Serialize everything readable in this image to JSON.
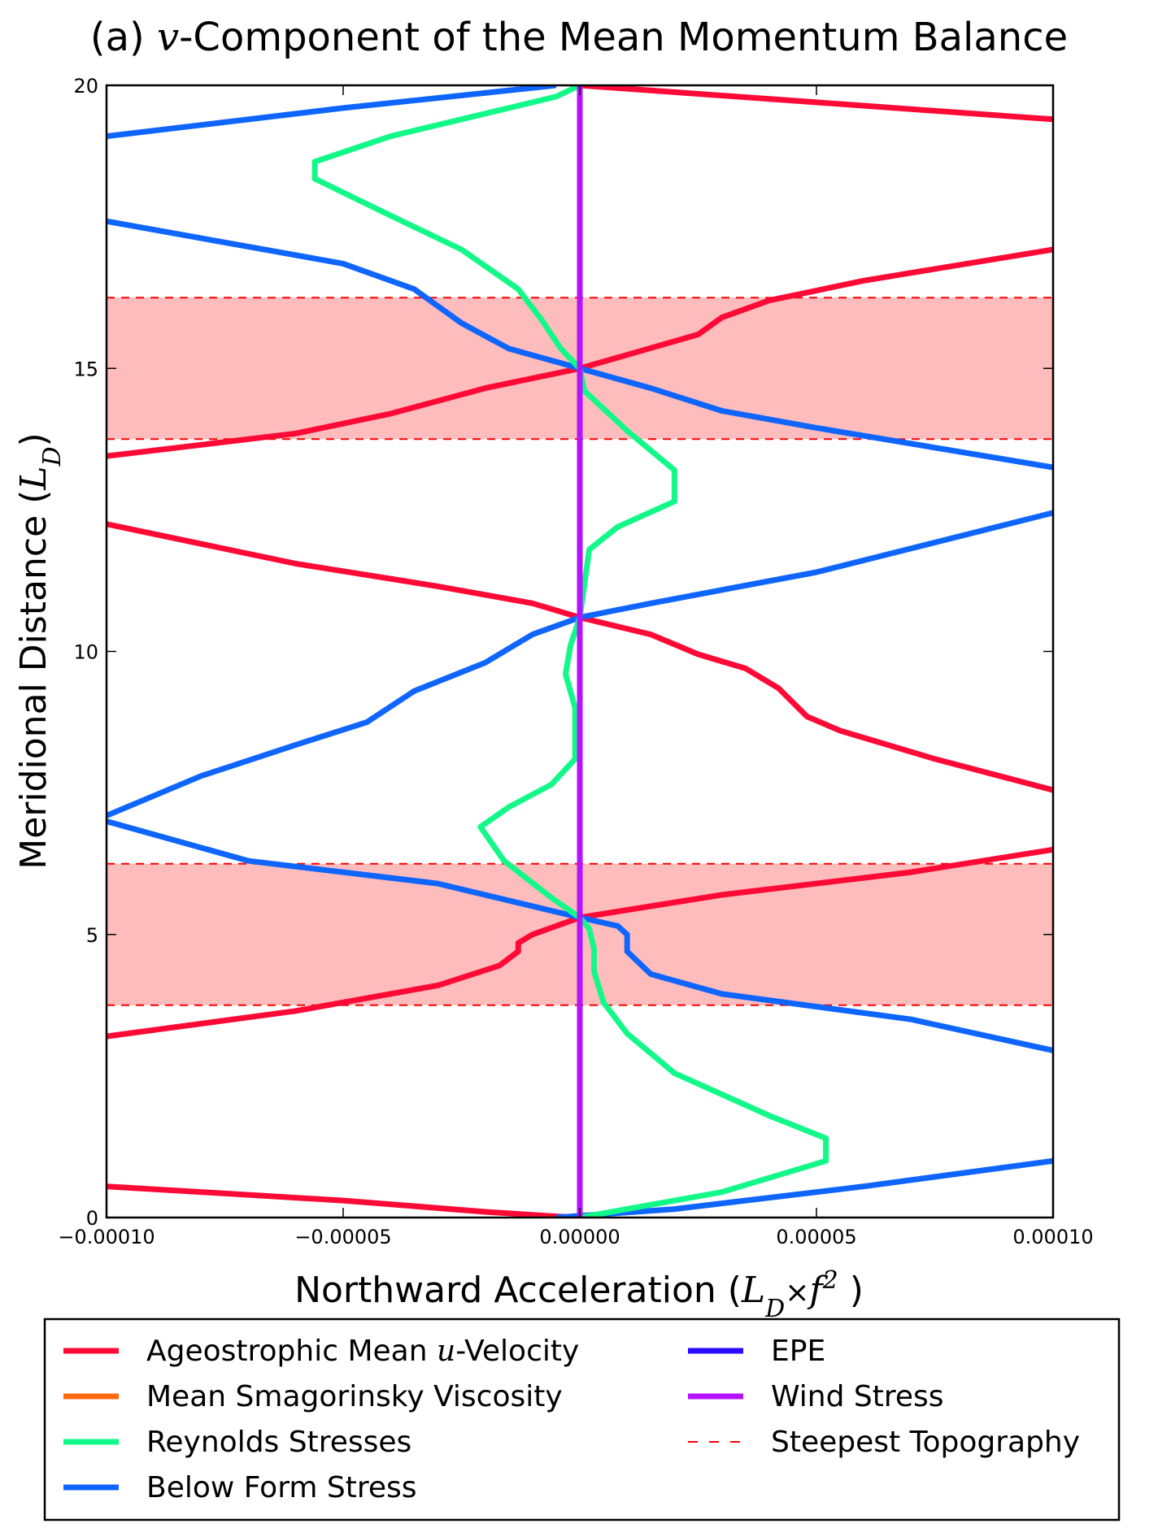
{
  "chart_data": {
    "type": "line",
    "title": "(a) v-Component of the Mean Momentum Balance",
    "title_parts": {
      "prefix": "(a) ",
      "math": "v",
      "suffix": "-Component of the Mean Momentum Balance"
    },
    "xlabel": "Northward Acceleration (L_D×f²)",
    "xlabel_parts": {
      "prefix": "Northward Acceleration (",
      "math": "L",
      "math_sub": "D",
      "math_mid": "×",
      "math_f": "f",
      "math_sup": "2",
      "suffix": ")"
    },
    "ylabel": "Meridional Distance (L_D)",
    "ylabel_parts": {
      "prefix": "Meridional Distance (",
      "math": "L",
      "math_sub": "D",
      "suffix": ")"
    },
    "xlim": [
      -0.0001,
      0.0001
    ],
    "ylim": [
      0,
      20
    ],
    "x_ticks": [
      -0.0001,
      -5e-05,
      0.0,
      5e-05,
      0.0001
    ],
    "x_tick_labels": [
      "−0.00010",
      "−0.00005",
      "0.00000",
      "0.00005",
      "0.00010"
    ],
    "y_ticks": [
      0,
      5,
      10,
      15,
      20
    ],
    "y_tick_labels": [
      "0",
      "5",
      "10",
      "15",
      "20"
    ],
    "grid": false,
    "legend_placement": "below plot, two columns",
    "shaded_bands": [
      {
        "y0": 3.75,
        "y1": 6.25,
        "color": "#ffbcbc"
      },
      {
        "y0": 13.75,
        "y1": 16.25,
        "color": "#ffbcbc"
      }
    ],
    "series": [
      {
        "name": "Ageostrophic Mean u-Velocity",
        "legend_parts": {
          "prefix": "Ageostrophic Mean ",
          "math": "u",
          "suffix": "-Velocity"
        },
        "color": "#ff0a36",
        "style": "solid",
        "segments": [
          [
            [
              -0.0001,
              0.55
            ],
            [
              -5e-05,
              0.3
            ],
            [
              -2e-05,
              0.1
            ],
            [
              -5e-06,
              0.02
            ],
            [
              0.0,
              0.0
            ]
          ],
          [
            [
              -0.0001,
              3.2
            ],
            [
              -6e-05,
              3.65
            ],
            [
              -3e-05,
              4.1
            ],
            [
              -1.7e-05,
              4.45
            ],
            [
              -1.3e-05,
              4.7
            ],
            [
              -1.3e-05,
              4.85
            ],
            [
              -1e-05,
              5.0
            ],
            [
              0.0,
              5.3
            ],
            [
              3e-05,
              5.7
            ],
            [
              7e-05,
              6.1
            ],
            [
              0.0001,
              6.5
            ]
          ],
          [
            [
              -0.0001,
              12.25
            ],
            [
              -6e-05,
              11.55
            ],
            [
              -3e-05,
              11.15
            ],
            [
              -1e-05,
              10.85
            ],
            [
              0.0,
              10.6
            ],
            [
              1.5e-05,
              10.3
            ],
            [
              2.5e-05,
              9.95
            ],
            [
              3.5e-05,
              9.7
            ],
            [
              4.2e-05,
              9.35
            ],
            [
              4.8e-05,
              8.85
            ],
            [
              5.5e-05,
              8.6
            ],
            [
              7.5e-05,
              8.1
            ],
            [
              0.0001,
              7.55
            ]
          ],
          [
            [
              -0.0001,
              13.45
            ],
            [
              -6e-05,
              13.85
            ],
            [
              -4e-05,
              14.2
            ],
            [
              -2e-05,
              14.65
            ],
            [
              0.0,
              15.0
            ],
            [
              2.5e-05,
              15.6
            ],
            [
              3e-05,
              15.9
            ],
            [
              4e-05,
              16.2
            ],
            [
              6e-05,
              16.55
            ],
            [
              0.0001,
              17.1
            ]
          ],
          [
            [
              0.0,
              20.0
            ],
            [
              5e-05,
              19.7
            ],
            [
              0.0001,
              19.4
            ]
          ]
        ]
      },
      {
        "name": "Mean Smagorinsky Viscosity",
        "color": "#ff6a10",
        "style": "solid",
        "segments": [
          [
            [
              0.0,
              0.0
            ],
            [
              0.0,
              20.0
            ]
          ]
        ]
      },
      {
        "name": "Reynolds Stresses",
        "color": "#13f989",
        "style": "solid",
        "segments": [
          [
            [
              0.0,
              0.0
            ],
            [
              3e-05,
              0.45
            ],
            [
              5.2e-05,
              1.0
            ],
            [
              5.2e-05,
              1.4
            ],
            [
              4e-05,
              1.8
            ],
            [
              2e-05,
              2.55
            ],
            [
              1e-05,
              3.25
            ],
            [
              5e-06,
              3.8
            ],
            [
              3e-06,
              4.35
            ],
            [
              3e-06,
              4.75
            ],
            [
              2e-06,
              5.1
            ],
            [
              0.0,
              5.3
            ],
            [
              -6e-06,
              5.65
            ],
            [
              -1.6e-05,
              6.3
            ],
            [
              -2.1e-05,
              6.9
            ],
            [
              -1.5e-05,
              7.25
            ],
            [
              -6e-06,
              7.65
            ],
            [
              -1e-06,
              8.1
            ],
            [
              -1e-06,
              9.0
            ],
            [
              -3e-06,
              9.6
            ],
            [
              -2e-06,
              10.1
            ],
            [
              0.0,
              10.6
            ],
            [
              1e-06,
              11.2
            ],
            [
              2e-06,
              11.8
            ],
            [
              8e-06,
              12.2
            ],
            [
              2e-05,
              12.65
            ],
            [
              2e-05,
              13.2
            ],
            [
              1e-05,
              13.9
            ],
            [
              1e-06,
              14.6
            ],
            [
              0.0,
              15.0
            ],
            [
              -4e-06,
              15.35
            ],
            [
              -8e-06,
              15.85
            ],
            [
              -1.3e-05,
              16.4
            ],
            [
              -2.5e-05,
              17.1
            ],
            [
              -4e-05,
              17.7
            ],
            [
              -5.6e-05,
              18.35
            ],
            [
              -5.6e-05,
              18.65
            ],
            [
              -4e-05,
              19.1
            ],
            [
              -2e-05,
              19.5
            ],
            [
              -5e-06,
              19.8
            ],
            [
              0.0,
              20.0
            ]
          ]
        ]
      },
      {
        "name": "Below Form Stress",
        "color": "#0f65ff",
        "style": "solid",
        "segments": [
          [
            [
              -0.0001,
              19.1
            ],
            [
              -5e-05,
              19.6
            ],
            [
              -5e-06,
              20.0
            ]
          ],
          [
            [
              -0.0001,
              17.6
            ],
            [
              -5e-05,
              16.85
            ],
            [
              -3.5e-05,
              16.4
            ],
            [
              -2.5e-05,
              15.8
            ],
            [
              -1.5e-05,
              15.35
            ],
            [
              0.0,
              15.0
            ],
            [
              1.5e-05,
              14.65
            ],
            [
              3e-05,
              14.25
            ],
            [
              5e-05,
              13.95
            ],
            [
              0.0001,
              13.25
            ]
          ],
          [
            [
              -0.0001,
              7.1
            ],
            [
              -8e-05,
              7.8
            ],
            [
              -6e-05,
              8.35
            ],
            [
              -4.5e-05,
              8.75
            ],
            [
              -3.5e-05,
              9.3
            ],
            [
              -2e-05,
              9.8
            ],
            [
              -1e-05,
              10.3
            ],
            [
              0.0,
              10.6
            ],
            [
              1.5e-05,
              10.85
            ],
            [
              5e-05,
              11.4
            ],
            [
              0.0001,
              12.45
            ]
          ],
          [
            [
              -0.0001,
              7.0
            ],
            [
              -7e-05,
              6.3
            ],
            [
              -3e-05,
              5.9
            ],
            [
              0.0,
              5.3
            ],
            [
              8e-06,
              5.15
            ],
            [
              1e-05,
              5.0
            ],
            [
              1e-05,
              4.7
            ],
            [
              1.5e-05,
              4.3
            ],
            [
              3e-05,
              3.95
            ],
            [
              7e-05,
              3.5
            ],
            [
              0.0001,
              2.95
            ]
          ],
          [
            [
              -5e-06,
              0.0
            ],
            [
              2e-05,
              0.15
            ],
            [
              6e-05,
              0.55
            ],
            [
              0.0001,
              1.0
            ]
          ]
        ]
      },
      {
        "name": "EPE",
        "color": "#2b08ff",
        "style": "solid",
        "segments": [
          [
            [
              0.0,
              0.0
            ],
            [
              0.0,
              20.0
            ]
          ]
        ]
      },
      {
        "name": "Wind Stress",
        "color": "#b512ff",
        "style": "solid",
        "segments": [
          [
            [
              0.0,
              0.0
            ],
            [
              0.0,
              20.0
            ]
          ]
        ]
      },
      {
        "name": "Steepest Topography",
        "color": "#ff0000",
        "style": "dashed",
        "segments": [
          [
            [
              -0.0001,
              3.75
            ],
            [
              0.0001,
              3.75
            ]
          ],
          [
            [
              -0.0001,
              6.25
            ],
            [
              0.0001,
              6.25
            ]
          ],
          [
            [
              -0.0001,
              13.75
            ],
            [
              0.0001,
              13.75
            ]
          ],
          [
            [
              -0.0001,
              16.25
            ],
            [
              0.0001,
              16.25
            ]
          ]
        ]
      }
    ],
    "legend_order": [
      [
        "Ageostrophic Mean u-Velocity",
        "Mean Smagorinsky Viscosity",
        "Reynolds Stresses",
        "Below Form Stress"
      ],
      [
        "EPE",
        "Wind Stress",
        "Steepest Topography"
      ]
    ]
  }
}
